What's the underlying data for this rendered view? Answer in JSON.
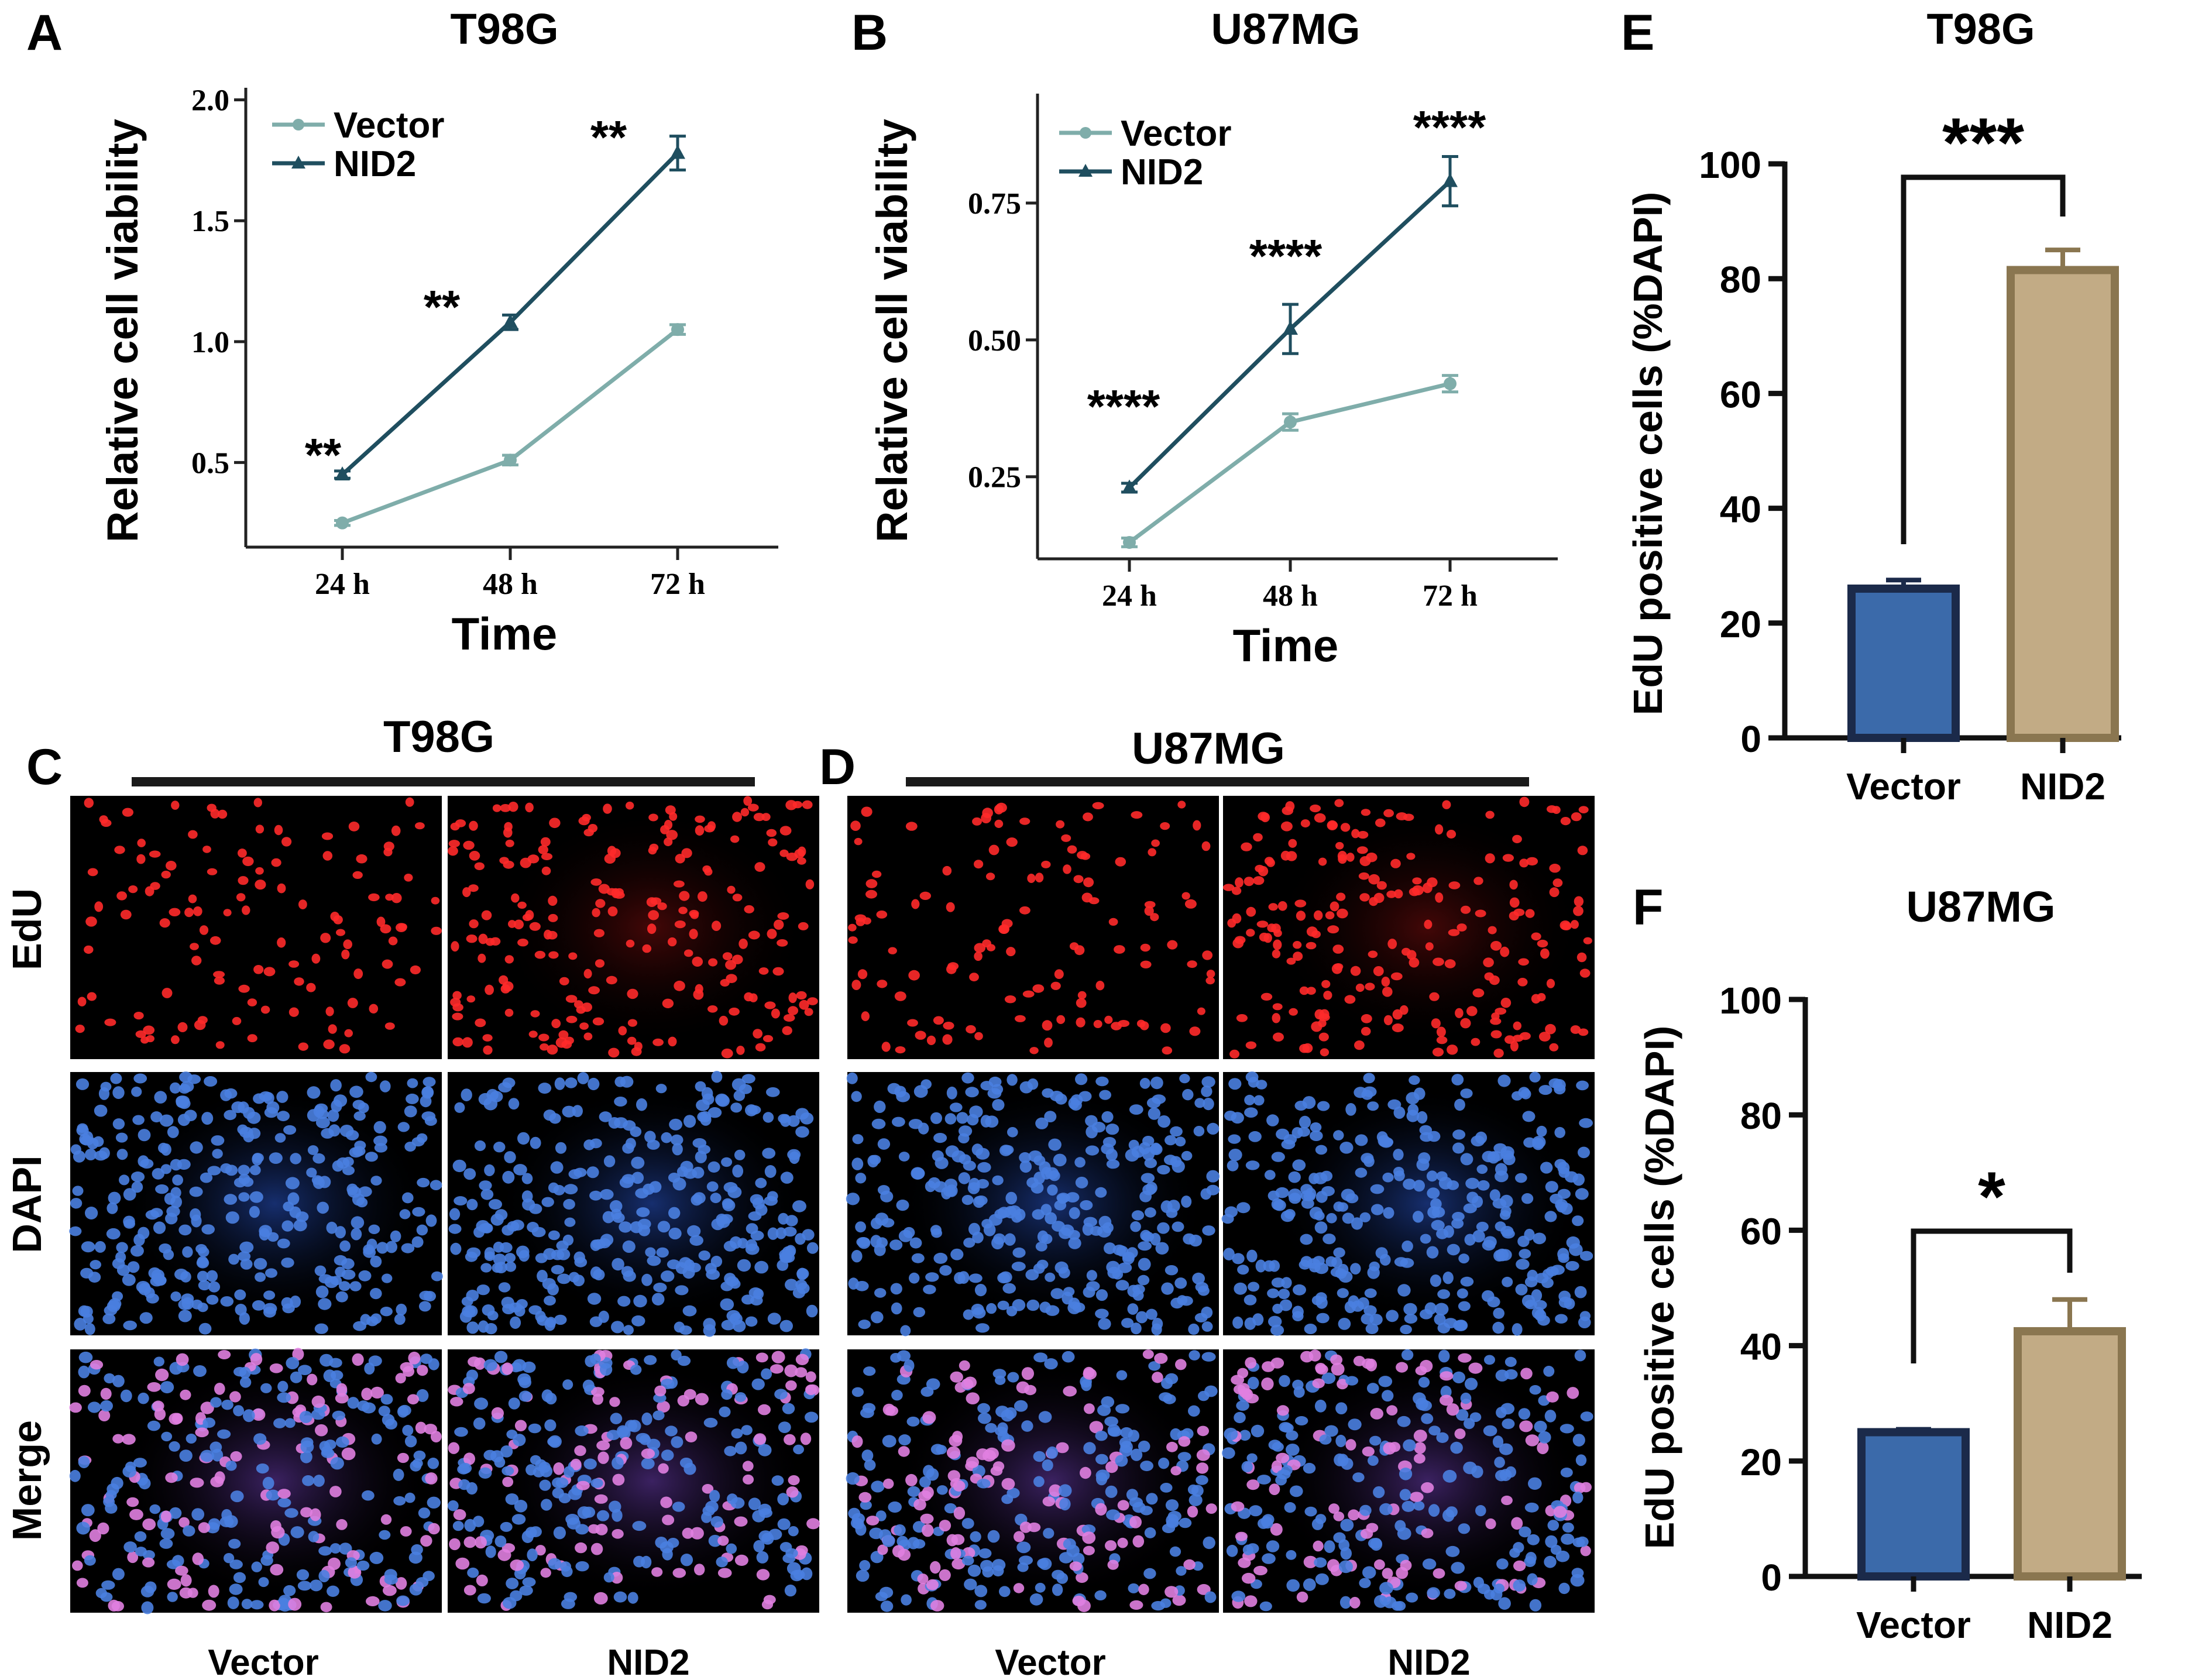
{
  "panels": {
    "A": {
      "letter": "A"
    },
    "B": {
      "letter": "B"
    },
    "C": {
      "letter": "C",
      "title": "T98G",
      "row_labels": [
        "EdU",
        "DAPI",
        "Merge"
      ],
      "col_labels": [
        "Vector",
        "NID2"
      ]
    },
    "D": {
      "letter": "D",
      "title": "U87MG",
      "col_labels": [
        "Vector",
        "NID2"
      ]
    },
    "E": {
      "letter": "E"
    },
    "F": {
      "letter": "F"
    }
  },
  "colors": {
    "vector_line": "#7fadaa",
    "nid2_line": "#1f4e5f",
    "vector_bar_fill": "#3b6aaa",
    "vector_bar_edge": "#1b2a4a",
    "nid2_bar_fill": "#c2ab85",
    "nid2_bar_edge": "#8a7650",
    "edu_red": "#ff2a2a",
    "dapi_blue": "#4a7fe0",
    "merge_pink": "#e080e0"
  },
  "chart_data": [
    {
      "id": "A",
      "type": "line",
      "title": "T98G",
      "xlabel": "Time",
      "ylabel": "Relative cell viability",
      "categories": [
        "24 h",
        "48 h",
        "72 h"
      ],
      "yticks": [
        0.5,
        1.0,
        1.5,
        2.0
      ],
      "ytick_labels": [
        "0.5",
        "1.0",
        "1.5",
        "2.0"
      ],
      "ylim": [
        0.15,
        2.05
      ],
      "legend_position": "top-left",
      "series": [
        {
          "name": "Vector",
          "values": [
            0.25,
            0.51,
            1.05
          ],
          "errors": [
            0.01,
            0.02,
            0.02
          ]
        },
        {
          "name": "NID2",
          "values": [
            0.45,
            1.08,
            1.78
          ],
          "errors": [
            0.015,
            0.03,
            0.07
          ]
        }
      ],
      "annotations": [
        "**",
        "**",
        "**"
      ]
    },
    {
      "id": "B",
      "type": "line",
      "title": "U87MG",
      "xlabel": "Time",
      "ylabel": "Relative cell viability",
      "categories": [
        "24 h",
        "48 h",
        "72 h"
      ],
      "yticks": [
        0.25,
        0.5,
        0.75
      ],
      "ytick_labels": [
        "0.25",
        "0.50",
        "0.75"
      ],
      "ylim": [
        0.1,
        0.95
      ],
      "legend_position": "top-left",
      "series": [
        {
          "name": "Vector",
          "values": [
            0.13,
            0.35,
            0.42
          ],
          "errors": [
            0.008,
            0.015,
            0.015
          ]
        },
        {
          "name": "NID2",
          "values": [
            0.23,
            0.52,
            0.79
          ],
          "errors": [
            0.008,
            0.045,
            0.045
          ]
        }
      ],
      "annotations": [
        "****",
        "****",
        "****"
      ]
    },
    {
      "id": "E",
      "type": "bar",
      "title": "T98G",
      "ylabel": "EdU positive cells (%DAPI)",
      "categories": [
        "Vector",
        "NID2"
      ],
      "values": [
        26,
        81.5
      ],
      "errors": [
        1.5,
        3.5
      ],
      "yticks": [
        0,
        20,
        40,
        60,
        80,
        100
      ],
      "ylim": [
        0,
        100
      ],
      "significance": "***"
    },
    {
      "id": "F",
      "type": "bar",
      "title": "U87MG",
      "ylabel": "EdU positive cells (%DAPI)",
      "categories": [
        "Vector",
        "NID2"
      ],
      "values": [
        25,
        42.5
      ],
      "errors": [
        0.5,
        5.5
      ],
      "yticks": [
        0,
        20,
        40,
        60,
        80,
        100
      ],
      "ylim": [
        0,
        100
      ],
      "significance": "*"
    }
  ]
}
